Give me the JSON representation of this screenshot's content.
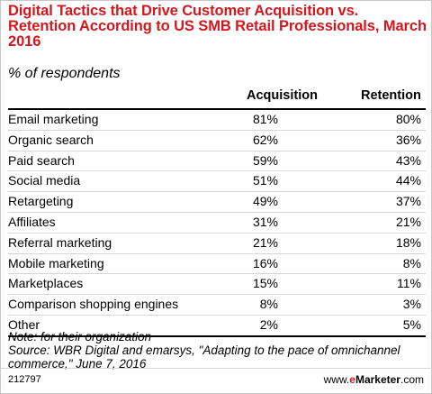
{
  "chart_data": {
    "type": "table",
    "title": "Digital Tactics that Drive Customer Acquisition vs. Retention According to US SMB Retail Professionals, March 2016",
    "subtitle": "% of respondents",
    "columns": [
      "Acquisition",
      "Retention"
    ],
    "rows": [
      {
        "label": "Email marketing",
        "values": [
          "81%",
          "80%"
        ]
      },
      {
        "label": "Organic search",
        "values": [
          "62%",
          "36%"
        ]
      },
      {
        "label": "Paid search",
        "values": [
          "59%",
          "43%"
        ]
      },
      {
        "label": "Social media",
        "values": [
          "51%",
          "44%"
        ]
      },
      {
        "label": "Retargeting",
        "values": [
          "49%",
          "37%"
        ]
      },
      {
        "label": "Affiliates",
        "values": [
          "31%",
          "21%"
        ]
      },
      {
        "label": "Referral marketing",
        "values": [
          "21%",
          "18%"
        ]
      },
      {
        "label": "Mobile marketing",
        "values": [
          "16%",
          "8%"
        ]
      },
      {
        "label": "Marketplaces",
        "values": [
          "15%",
          "11%"
        ]
      },
      {
        "label": "Comparison shopping engines",
        "values": [
          "8%",
          "3%"
        ]
      },
      {
        "label": "Other",
        "values": [
          "2%",
          "5%"
        ]
      }
    ],
    "note": "Note: for their organization",
    "source": "Source: WBR Digital and emarsys, \"Adapting to the pace of omnichannel commerce,\" June 7, 2016",
    "code": "212797",
    "brand": {
      "prefix": "www.",
      "e": "e",
      "marketer": "Marketer",
      "suffix": ".com"
    },
    "colors": {
      "title": "#d4161d",
      "rule": "#000000",
      "row_divider": "#d6d6d6"
    }
  }
}
